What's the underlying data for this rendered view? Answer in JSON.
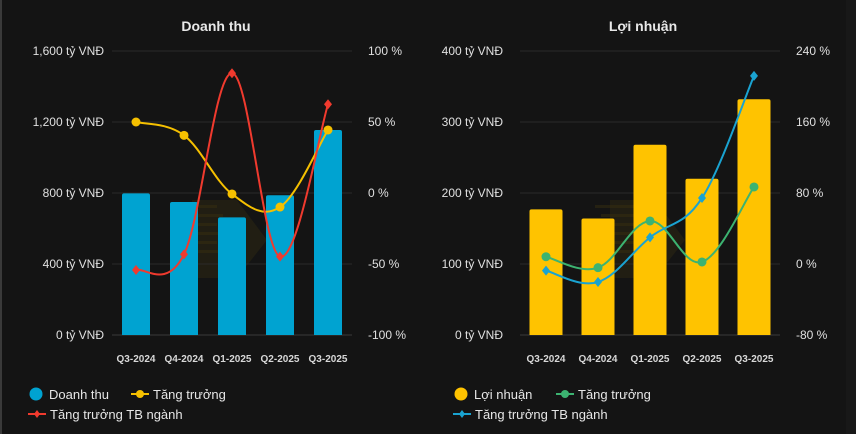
{
  "chart_data": [
    {
      "type": "bar",
      "title": "Doanh thu",
      "categories": [
        "Q3-2024",
        "Q4-2024",
        "Q1-2025",
        "Q2-2025",
        "Q3-2025"
      ],
      "y_left": {
        "min": 0,
        "max": 1600,
        "ticks": [
          0,
          400,
          800,
          1200,
          1600
        ],
        "tick_labels": [
          "0 tỷ VNĐ",
          "400 tỷ VNĐ",
          "800 tỷ VNĐ",
          "1,200 tỷ VNĐ",
          "1,600 tỷ VNĐ"
        ]
      },
      "y_right": {
        "min": -100,
        "max": 100,
        "ticks": [
          -100,
          -50,
          0,
          50,
          100
        ],
        "tick_labels": [
          "-100 %",
          "-50 %",
          "0 %",
          "50 %",
          "100 %"
        ]
      },
      "grid": true,
      "legend_position": "bottom-left",
      "series": [
        {
          "name": "Doanh thu",
          "kind": "bar",
          "axis": "left",
          "color": "#00a3d1",
          "values": [
            798,
            749,
            663,
            787,
            1155
          ]
        },
        {
          "name": "Tăng trưởng",
          "kind": "line",
          "marker": "circle",
          "axis": "right",
          "color": "#f5c000",
          "values": [
            50,
            40.6,
            -0.7,
            -9.9,
            44.4
          ]
        },
        {
          "name": "Tăng trưởng TB ngành",
          "kind": "line",
          "marker": "diamond",
          "axis": "right",
          "color": "#f03a2e",
          "values": [
            -54.2,
            -43.2,
            84.3,
            -44.8,
            62.5
          ]
        }
      ]
    },
    {
      "type": "bar",
      "title": "Lợi nhuận",
      "categories": [
        "Q3-2024",
        "Q4-2024",
        "Q1-2025",
        "Q2-2025",
        "Q3-2025"
      ],
      "y_left": {
        "min": 0,
        "max": 400,
        "ticks": [
          0,
          100,
          200,
          300,
          400
        ],
        "tick_labels": [
          "0 tỷ VNĐ",
          "100 tỷ VNĐ",
          "200 tỷ VNĐ",
          "300 tỷ VNĐ",
          "400 tỷ VNĐ"
        ]
      },
      "y_right": {
        "min": -80,
        "max": 240,
        "ticks": [
          -80,
          0,
          80,
          160,
          240
        ],
        "tick_labels": [
          "-80 %",
          "0 %",
          "80 %",
          "160 %",
          "240 %"
        ]
      },
      "grid": true,
      "legend_position": "bottom-left",
      "series": [
        {
          "name": "Lợi nhuận",
          "kind": "bar",
          "axis": "left",
          "color": "#ffc300",
          "values": [
            177,
            164,
            268,
            220,
            332
          ]
        },
        {
          "name": "Tăng trưởng",
          "kind": "line",
          "marker": "circle",
          "axis": "right",
          "color": "#3cb371",
          "values": [
            8.2,
            -4.1,
            48.5,
            2.3,
            86.8
          ]
        },
        {
          "name": "Tăng trưởng TB ngành",
          "kind": "line",
          "marker": "diamond",
          "axis": "right",
          "color": "#1aa3d1",
          "values": [
            -7.5,
            -20.3,
            30,
            74.4,
            212
          ]
        }
      ]
    }
  ]
}
